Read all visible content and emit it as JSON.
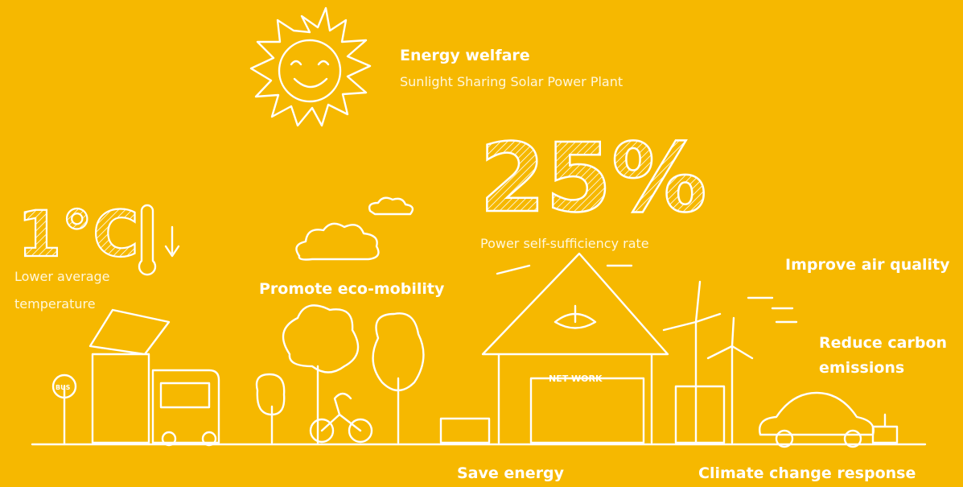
{
  "sun": {
    "title": "Energy welfare",
    "subtitle": "Sunlight Sharing Solar Power Plant"
  },
  "self_sufficiency": {
    "figure": "25%",
    "caption": "Power self-sufficiency rate"
  },
  "temperature": {
    "figure": "1°C",
    "caption_lines": [
      "Lower average",
      "temperature"
    ]
  },
  "benefits": {
    "eco_mobility": "Promote eco-mobility",
    "air_quality": "Improve air quality",
    "carbon_lines": [
      "Reduce carbon",
      "emissions"
    ],
    "save_energy": "Save energy",
    "climate": "Climate change response"
  },
  "drawing_labels": {
    "bus_sign": "BUS",
    "network_sign": "NET WORK"
  }
}
